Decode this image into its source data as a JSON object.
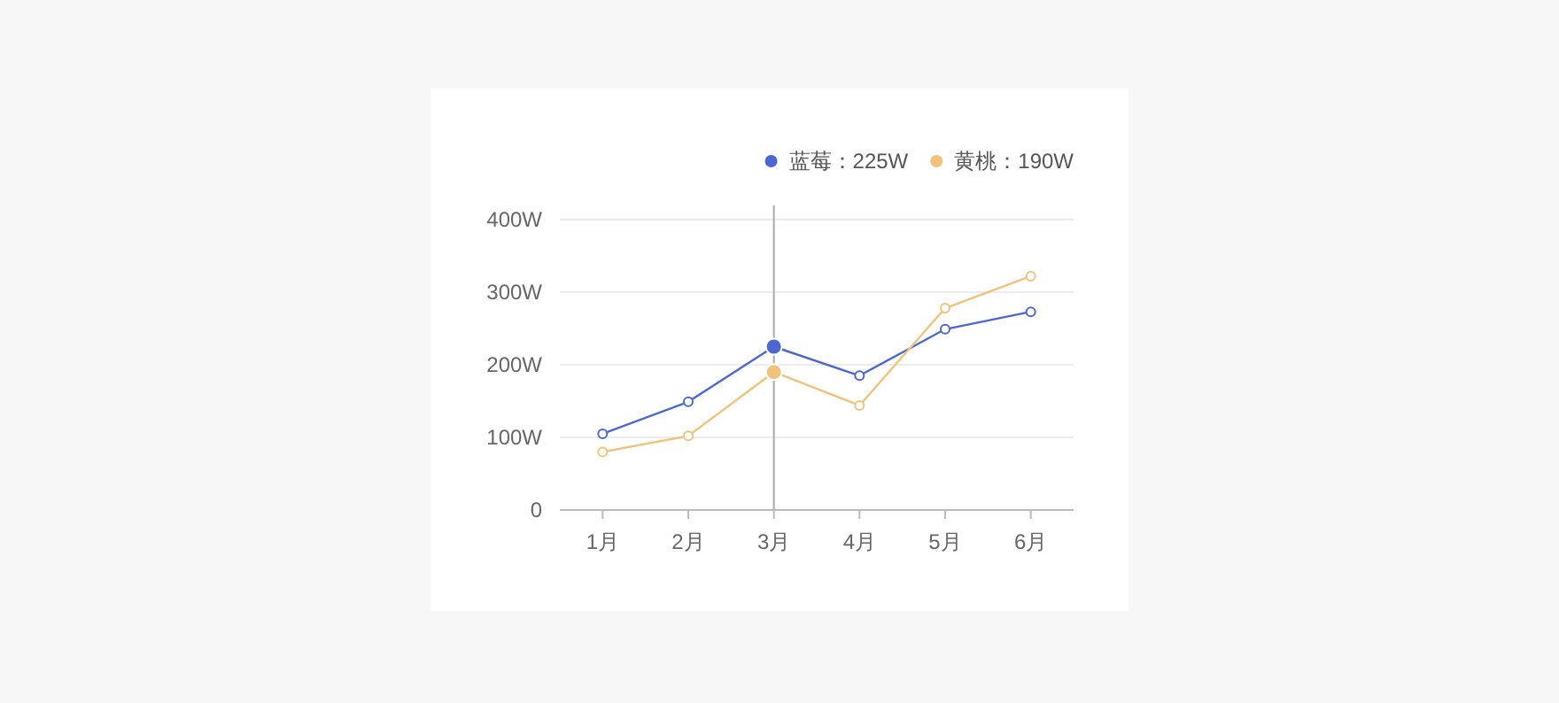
{
  "chart_data": {
    "type": "line",
    "categories": [
      "1月",
      "2月",
      "3月",
      "4月",
      "5月",
      "6月"
    ],
    "series": [
      {
        "name": "蓝莓：225W",
        "color": "#4b67d1",
        "values": [
          105,
          149,
          225,
          185,
          249,
          273
        ]
      },
      {
        "name": "黄桃：190W",
        "color": "#f2c27a",
        "values": [
          80,
          102,
          190,
          144,
          278,
          322
        ]
      }
    ],
    "ylim": [
      0,
      400
    ],
    "yticks": [
      0,
      {
        "value": 100,
        "label": "100W"
      },
      {
        "value": 200,
        "label": "200W"
      },
      {
        "value": 300,
        "label": "300W"
      },
      {
        "value": 400,
        "label": "400W"
      }
    ],
    "grid": "y",
    "legend": "top right",
    "marker": "circle",
    "line_style": "solid",
    "ref_lines": [
      {
        "axis": "x",
        "value": "3月",
        "color": "#aaaaaa"
      }
    ]
  }
}
